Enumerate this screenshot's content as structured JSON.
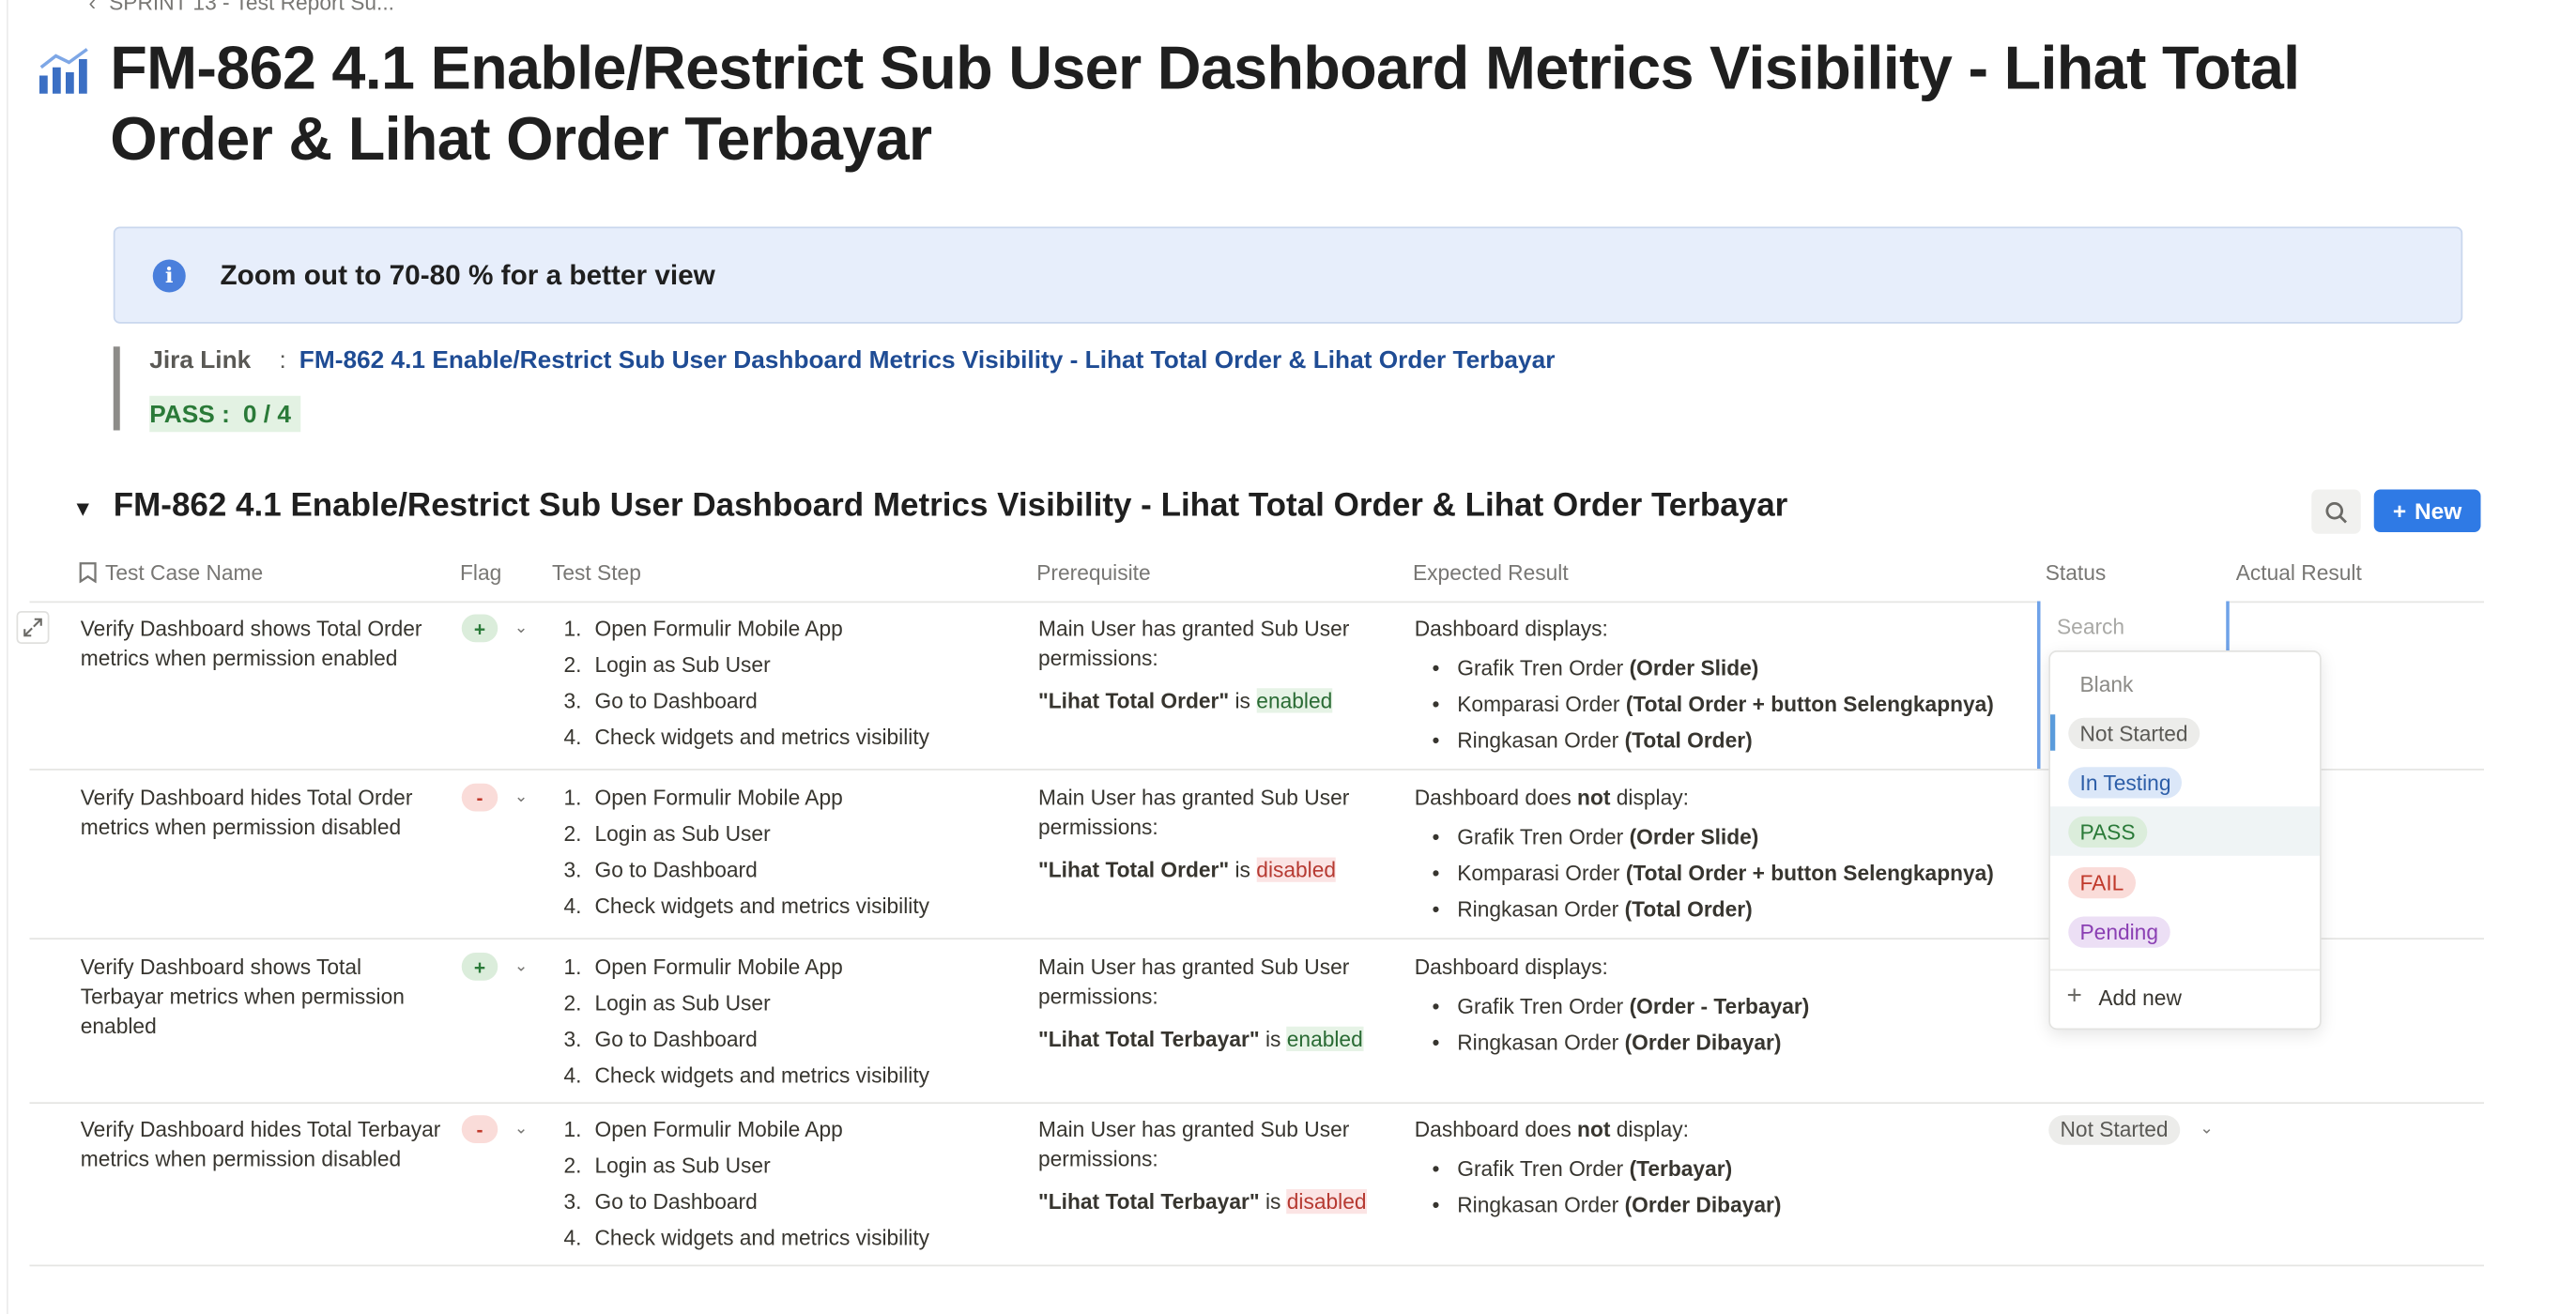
{
  "breadcrumb": {
    "text": "SPRINT 13 - Test Report Su..."
  },
  "page": {
    "title": "FM-862 4.1 Enable/Restrict Sub User Dashboard Metrics Visibility - Lihat Total Order & Lihat Order Terbayar"
  },
  "callout": {
    "text": "Zoom out to 70-80 % for a better view"
  },
  "jira": {
    "label": "Jira Link",
    "colon": ":",
    "link_text": "FM-862 4.1 Enable/Restrict Sub User Dashboard Metrics Visibility - Lihat Total Order & Lihat Order Terbayar"
  },
  "pass": {
    "label": "PASS :",
    "value": "0 / 4"
  },
  "section": {
    "toggle": "▼",
    "title": "FM-862 4.1 Enable/Restrict Sub User Dashboard Metrics Visibility - Lihat Total Order & Lihat Order Terbayar",
    "new_label": "New"
  },
  "columns": {
    "name": "Test Case Name",
    "flag": "Flag",
    "step": "Test Step",
    "prereq": "Prerequisite",
    "expected": "Expected Result",
    "status": "Status",
    "actual": "Actual Result"
  },
  "rows": [
    {
      "name": "Verify Dashboard shows Total Order metrics when permission enabled",
      "flag": "+",
      "steps": [
        "Open Formulir Mobile App",
        "Login as Sub User",
        "Go to Dashboard",
        "Check widgets and metrics visibility"
      ],
      "prereq_line": "Main User has granted Sub User permissions:",
      "prereq_perm": "\"Lihat Total Order\"",
      "prereq_is": "is",
      "prereq_state": "enabled",
      "expected_intro": "Dashboard displays:",
      "expected_items": [
        {
          "text": "Grafik Tren Order",
          "bold": "(Order Slide)"
        },
        {
          "text": "Komparasi Order",
          "bold": "(Total Order + button Selengkapnya)"
        },
        {
          "text": "Ringkasan Order",
          "bold": "(Total Order)"
        }
      ]
    },
    {
      "name": "Verify Dashboard hides Total Order metrics when permission disabled",
      "flag": "-",
      "steps": [
        "Open Formulir Mobile App",
        "Login as Sub User",
        "Go to Dashboard",
        "Check widgets and metrics visibility"
      ],
      "prereq_line": "Main User has granted Sub User permissions:",
      "prereq_perm": "\"Lihat Total Order\"",
      "prereq_is": "is",
      "prereq_state": "disabled",
      "expected_pre": "Dashboard does",
      "expected_not": "not",
      "expected_post": "display:",
      "expected_items": [
        {
          "text": "Grafik Tren Order",
          "bold": "(Order Slide)"
        },
        {
          "text": "Komparasi Order",
          "bold": "(Total Order + button Selengkapnya)"
        },
        {
          "text": "Ringkasan Order",
          "bold": "(Total Order)"
        }
      ]
    },
    {
      "name": "Verify Dashboard shows Total Terbayar metrics when permission enabled",
      "flag": "+",
      "steps": [
        "Open Formulir Mobile App",
        "Login as Sub User",
        "Go to Dashboard",
        "Check widgets and metrics visibility"
      ],
      "prereq_line": "Main User has granted Sub User permissions:",
      "prereq_perm": "\"Lihat Total Terbayar\"",
      "prereq_is": "is",
      "prereq_state": "enabled",
      "expected_intro": "Dashboard displays:",
      "expected_items": [
        {
          "text": "Grafik Tren Order",
          "bold": "(Order - Terbayar)"
        },
        {
          "text": "Ringkasan Order",
          "bold": "(Order Dibayar)"
        }
      ]
    },
    {
      "name": "Verify Dashboard hides Total Terbayar metrics when permission disabled",
      "flag": "-",
      "steps": [
        "Open Formulir Mobile App",
        "Login as Sub User",
        "Go to Dashboard",
        "Check widgets and metrics visibility"
      ],
      "prereq_line": "Main User has granted Sub User permissions:",
      "prereq_perm": "\"Lihat Total Terbayar\"",
      "prereq_is": "is",
      "prereq_state": "disabled",
      "expected_pre": "Dashboard does",
      "expected_not": "not",
      "expected_post": "display:",
      "expected_items": [
        {
          "text": "Grafik Tren Order",
          "bold": "(Terbayar)"
        },
        {
          "text": "Ringkasan Order",
          "bold": "(Order Dibayar)"
        }
      ],
      "status": "Not Started"
    }
  ],
  "status_menu": {
    "search_placeholder": "Search",
    "options": [
      "Blank",
      "Not Started",
      "In Testing",
      "PASS",
      "FAIL",
      "Pending"
    ],
    "add_new": "Add new"
  },
  "colors": {
    "accent": "#2f7ae5",
    "link": "#1f4c94",
    "pass_green": "#2a7a38",
    "fail_red": "#c0392b",
    "pending_purple": "#8a3fb3"
  }
}
